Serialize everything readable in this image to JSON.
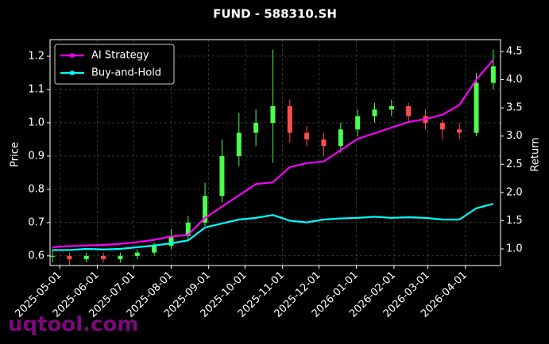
{
  "chart_data": {
    "type": "candlestick",
    "title": "FUND - 588310.SH",
    "ylabel": "Price",
    "y2label": "Return",
    "watermark": "uqtool.com",
    "grid": true,
    "legend": "upper left",
    "xlim": [
      "2025-04-23",
      "2026-04-30"
    ],
    "xticks": [
      "2025-05-01",
      "2025-06-01",
      "2025-07-01",
      "2025-08-01",
      "2025-09-01",
      "2025-10-01",
      "2025-11-01",
      "2025-12-01",
      "2026-01-01",
      "2026-02-01",
      "2026-03-01",
      "2026-04-01"
    ],
    "ylim": [
      0.571,
      1.25
    ],
    "yticks": [
      0.6,
      0.7,
      0.8,
      0.9,
      {
        "value": 1,
        "label": "1.0"
      },
      1.1,
      1.2
    ],
    "y2lim": [
      0.705,
      4.71
    ],
    "y2ticks": [
      {
        "value": 1,
        "label": "1.0"
      },
      1.5,
      {
        "value": 2,
        "label": "2.0"
      },
      2.5,
      {
        "value": 3,
        "label": "3.0"
      },
      3.5,
      {
        "value": 4,
        "label": "4.0"
      },
      4.5
    ],
    "x": [
      "2025-04-25",
      "2025-05-09",
      "2025-05-23",
      "2025-06-06",
      "2025-06-20",
      "2025-07-04",
      "2025-07-18",
      "2025-08-01",
      "2025-08-15",
      "2025-08-29",
      "2025-09-12",
      "2025-09-26",
      "2025-10-10",
      "2025-10-24",
      "2025-11-07",
      "2025-11-21",
      "2025-12-05",
      "2025-12-19",
      "2026-01-02",
      "2026-01-16",
      "2026-01-30",
      "2026-02-13",
      "2026-02-27",
      "2026-03-13",
      "2026-03-27",
      "2026-04-10",
      "2026-04-24"
    ],
    "up_color": "#4cff4c",
    "down_color": "#ff4c4c",
    "open": [
      0.6,
      0.6,
      0.59,
      0.6,
      0.59,
      0.6,
      0.61,
      0.63,
      0.66,
      0.7,
      0.78,
      0.9,
      0.97,
      1.0,
      1.05,
      0.97,
      0.95,
      0.93,
      0.98,
      1.02,
      1.04,
      1.05,
      1.02,
      1.0,
      0.98,
      0.97,
      1.12
    ],
    "high": [
      0.62,
      0.61,
      0.61,
      0.61,
      0.61,
      0.62,
      0.64,
      0.68,
      0.72,
      0.82,
      0.95,
      1.03,
      1.04,
      1.22,
      1.07,
      0.99,
      0.97,
      1.0,
      1.04,
      1.06,
      1.07,
      1.06,
      1.04,
      1.01,
      1.0,
      1.15,
      1.22
    ],
    "low": [
      0.58,
      0.57,
      0.58,
      0.58,
      0.58,
      0.59,
      0.6,
      0.62,
      0.65,
      0.69,
      0.76,
      0.87,
      0.93,
      0.88,
      0.94,
      0.93,
      0.9,
      0.91,
      0.96,
      1.0,
      1.02,
      1.0,
      0.98,
      0.95,
      0.95,
      0.96,
      1.1
    ],
    "close": [
      0.6,
      0.59,
      0.6,
      0.59,
      0.6,
      0.61,
      0.63,
      0.66,
      0.7,
      0.78,
      0.9,
      0.97,
      1.0,
      1.05,
      0.97,
      0.95,
      0.93,
      0.98,
      1.02,
      1.04,
      1.05,
      1.02,
      1.0,
      0.98,
      0.97,
      1.12,
      1.17
    ],
    "series": [
      {
        "name": "AI Strategy",
        "color": "#ff00ff",
        "axis": "y2",
        "values": [
          1.03,
          1.05,
          1.06,
          1.07,
          1.09,
          1.12,
          1.16,
          1.22,
          1.25,
          1.55,
          1.75,
          1.95,
          2.15,
          2.18,
          2.45,
          2.52,
          2.55,
          2.75,
          2.95,
          3.05,
          3.15,
          3.25,
          3.3,
          3.38,
          3.55,
          4.0,
          4.35
        ]
      },
      {
        "name": "Buy-and-Hold",
        "color": "#00ffff",
        "axis": "y2",
        "values": [
          0.98,
          0.98,
          1.0,
          0.99,
          1.0,
          1.03,
          1.06,
          1.1,
          1.15,
          1.38,
          1.45,
          1.52,
          1.55,
          1.6,
          1.5,
          1.47,
          1.52,
          1.54,
          1.55,
          1.57,
          1.55,
          1.56,
          1.55,
          1.52,
          1.52,
          1.72,
          1.8
        ]
      }
    ]
  }
}
